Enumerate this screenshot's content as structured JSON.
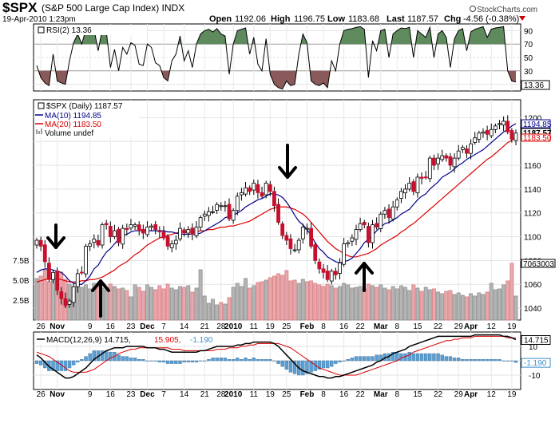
{
  "header": {
    "symbol": "$SPX",
    "name": "(S&P 500 Large Cap Index) INDX",
    "date": "19-Apr-2010 1:23pm",
    "open_label": "Open",
    "open": "1192.06",
    "high_label": "High",
    "high": "1196.75",
    "low_label": "Low",
    "low": "1183.68",
    "last_label": "Last",
    "last": "1187.57",
    "chg_label": "Chg",
    "chg": "-4.56 (-0.38%)",
    "copyright": "StockCharts.com"
  },
  "rsi": {
    "legend": "RSI(2) 13.36",
    "current_label": "13.36",
    "levels": [
      "90",
      "70",
      "50",
      "30",
      "10"
    ]
  },
  "price_legend": {
    "main": "$SPX (Daily) 1187.57",
    "ma10": "MA(10) 1194.85",
    "ma20": "MA(20) 1183.50",
    "volume": "Volume undef"
  },
  "macd": {
    "legend_main": "MACD(12,26,9) 14.715,",
    "legend_signal": "15.905,",
    "legend_hist": "-1.190",
    "label_main": "14.715",
    "label_hist": "-1.190",
    "ticks": [
      "10",
      "0",
      "-10"
    ]
  },
  "price_axis": {
    "ticks": [
      "1200",
      "1180",
      "1160",
      "1140",
      "1120",
      "1100",
      "1080",
      "1060",
      "1040"
    ],
    "labels_right": {
      "ma10": "1194.85",
      "last": "1187.57",
      "ma20": "1183.50"
    }
  },
  "volume_axis": {
    "ticks": [
      "7.5B",
      "5.0B",
      "2.5B"
    ],
    "label_right": "7063003"
  },
  "x_axis": {
    "labels": [
      {
        "i": 1,
        "t": "26",
        "bold": false
      },
      {
        "i": 5,
        "t": "Nov",
        "bold": true
      },
      {
        "i": 13,
        "t": "9",
        "bold": false
      },
      {
        "i": 18,
        "t": "16",
        "bold": false
      },
      {
        "i": 23,
        "t": "23",
        "bold": false
      },
      {
        "i": 27,
        "t": "Dec",
        "bold": true
      },
      {
        "i": 31,
        "t": "7",
        "bold": false
      },
      {
        "i": 36,
        "t": "14",
        "bold": false
      },
      {
        "i": 41,
        "t": "21",
        "bold": false
      },
      {
        "i": 45,
        "t": "28",
        "bold": false
      },
      {
        "i": 48,
        "t": "2010",
        "bold": true
      },
      {
        "i": 53,
        "t": "11",
        "bold": false
      },
      {
        "i": 57,
        "t": "19",
        "bold": false
      },
      {
        "i": 61,
        "t": "25",
        "bold": false
      },
      {
        "i": 66,
        "t": "Feb",
        "bold": true
      },
      {
        "i": 70,
        "t": "8",
        "bold": false
      },
      {
        "i": 75,
        "t": "16",
        "bold": false
      },
      {
        "i": 79,
        "t": "22",
        "bold": false
      },
      {
        "i": 84,
        "t": "Mar",
        "bold": true
      },
      {
        "i": 88,
        "t": "8",
        "bold": false
      },
      {
        "i": 93,
        "t": "15",
        "bold": false
      },
      {
        "i": 98,
        "t": "22",
        "bold": false
      },
      {
        "i": 103,
        "t": "29",
        "bold": false
      },
      {
        "i": 106,
        "t": "Apr",
        "bold": true
      },
      {
        "i": 111,
        "t": "12",
        "bold": false
      },
      {
        "i": 116,
        "t": "19",
        "bold": false
      }
    ]
  },
  "colors": {
    "up": "#ffffff",
    "down": "#c8102e",
    "ma10": "#00008b",
    "ma20": "#dd0000",
    "vol_up": "#b5b5b5",
    "vol_down": "#e8a8b0",
    "rsi_over": "#5e8a5e",
    "rsi_under": "#8a5a5a",
    "macd_hist": "#5a9fd4",
    "arrows": "#000000"
  },
  "chart_data": {
    "type": "candlestick",
    "title": "$SPX (S&P 500 Large Cap Index) INDX",
    "price_range": [
      1030,
      1215
    ],
    "rsi_range": [
      0,
      100
    ],
    "volume_range": [
      0,
      10
    ],
    "macd_range": [
      -20,
      20
    ],
    "closes": [
      1097,
      1092,
      1079,
      1064,
      1070,
      1055,
      1048,
      1042,
      1046,
      1058,
      1069,
      1070,
      1092,
      1094,
      1098,
      1093,
      1110,
      1110,
      1100,
      1105,
      1095,
      1107,
      1106,
      1110,
      1110,
      1105,
      1103,
      1108,
      1109,
      1106,
      1104,
      1099,
      1092,
      1094,
      1097,
      1107,
      1103,
      1106,
      1102,
      1108,
      1116,
      1119,
      1121,
      1121,
      1127,
      1126,
      1126,
      1115,
      1122,
      1134,
      1137,
      1141,
      1138,
      1145,
      1137,
      1134,
      1145,
      1138,
      1126,
      1112,
      1101,
      1097,
      1090,
      1089,
      1097,
      1108,
      1107,
      1092,
      1080,
      1073,
      1070,
      1064,
      1071,
      1068,
      1078,
      1094,
      1095,
      1099,
      1106,
      1111,
      1110,
      1095,
      1110,
      1108,
      1119,
      1122,
      1116,
      1125,
      1131,
      1138,
      1140,
      1145,
      1138,
      1150,
      1149,
      1150,
      1166,
      1160,
      1166,
      1168,
      1166,
      1160,
      1166,
      1172,
      1175,
      1170,
      1178,
      1183,
      1187,
      1188,
      1186,
      1190,
      1193,
      1195,
      1197,
      1188,
      1182,
      1187
    ],
    "ma10": [
      1070,
      1072,
      1073,
      1073,
      1072,
      1071,
      1070,
      1067,
      1063,
      1061,
      1060,
      1060,
      1063,
      1067,
      1073,
      1076,
      1082,
      1087,
      1090,
      1094,
      1098,
      1101,
      1102,
      1104,
      1105,
      1105,
      1105,
      1105,
      1105,
      1105,
      1105,
      1105,
      1104,
      1104,
      1103,
      1102,
      1102,
      1102,
      1102,
      1102,
      1103,
      1105,
      1107,
      1109,
      1111,
      1113,
      1116,
      1117,
      1118,
      1120,
      1122,
      1125,
      1127,
      1129,
      1131,
      1132,
      1134,
      1136,
      1136,
      1135,
      1133,
      1129,
      1124,
      1118,
      1113,
      1110,
      1106,
      1101,
      1095,
      1090,
      1087,
      1083,
      1081,
      1079,
      1078,
      1079,
      1080,
      1082,
      1086,
      1090,
      1095,
      1098,
      1101,
      1105,
      1108,
      1111,
      1112,
      1114,
      1116,
      1119,
      1121,
      1123,
      1127,
      1131,
      1134,
      1136,
      1140,
      1143,
      1146,
      1150,
      1152,
      1154,
      1157,
      1160,
      1162,
      1165,
      1167,
      1169,
      1171,
      1173,
      1176,
      1179,
      1182,
      1185,
      1188,
      1190,
      1193,
      1195
    ],
    "ma20": [
      1062,
      1063,
      1064,
      1065,
      1065,
      1065,
      1064,
      1063,
      1062,
      1062,
      1062,
      1063,
      1063,
      1064,
      1064,
      1065,
      1066,
      1068,
      1070,
      1072,
      1075,
      1077,
      1079,
      1082,
      1085,
      1087,
      1090,
      1093,
      1095,
      1097,
      1099,
      1100,
      1101,
      1102,
      1103,
      1104,
      1104,
      1104,
      1104,
      1104,
      1105,
      1105,
      1106,
      1106,
      1107,
      1108,
      1108,
      1109,
      1109,
      1110,
      1111,
      1112,
      1113,
      1115,
      1117,
      1119,
      1121,
      1123,
      1124,
      1125,
      1125,
      1125,
      1124,
      1123,
      1121,
      1119,
      1116,
      1112,
      1108,
      1104,
      1100,
      1096,
      1093,
      1090,
      1088,
      1086,
      1084,
      1083,
      1083,
      1084,
      1085,
      1086,
      1088,
      1090,
      1093,
      1095,
      1097,
      1099,
      1101,
      1104,
      1106,
      1109,
      1111,
      1114,
      1117,
      1120,
      1123,
      1126,
      1129,
      1132,
      1135,
      1138,
      1141,
      1144,
      1147,
      1150,
      1153,
      1156,
      1159,
      1162,
      1165,
      1167,
      1170,
      1173,
      1176,
      1179,
      1181,
      1183.5
    ],
    "rsi": [
      38,
      20,
      12,
      8,
      55,
      15,
      12,
      10,
      45,
      72,
      85,
      70,
      92,
      90,
      92,
      60,
      92,
      88,
      35,
      62,
      30,
      65,
      55,
      72,
      68,
      40,
      38,
      70,
      65,
      42,
      38,
      20,
      15,
      45,
      55,
      82,
      45,
      60,
      35,
      70,
      85,
      90,
      92,
      88,
      93,
      85,
      82,
      25,
      70,
      90,
      92,
      94,
      55,
      80,
      40,
      30,
      78,
      25,
      10,
      5,
      3,
      15,
      8,
      10,
      55,
      85,
      72,
      15,
      10,
      8,
      12,
      5,
      45,
      30,
      70,
      90,
      92,
      93,
      95,
      96,
      92,
      20,
      75,
      60,
      90,
      92,
      50,
      85,
      90,
      94,
      93,
      95,
      50,
      90,
      85,
      80,
      95,
      50,
      85,
      90,
      80,
      35,
      78,
      90,
      93,
      60,
      88,
      92,
      94,
      96,
      80,
      92,
      94,
      95,
      96,
      30,
      15,
      13.36
    ],
    "volume": [
      5.2,
      5.5,
      6.3,
      4.8,
      5.6,
      4.9,
      6.0,
      5.1,
      4.5,
      4.2,
      4.9,
      4.1,
      4.4,
      3.9,
      4.6,
      4.3,
      4.0,
      3.8,
      4.5,
      4.2,
      3.9,
      4.0,
      3.7,
      2.9,
      4.4,
      4.1,
      3.6,
      4.4,
      4.1,
      3.8,
      4.3,
      3.9,
      4.5,
      4.0,
      3.8,
      4.2,
      4.1,
      4.3,
      3.5,
      4.0,
      6.3,
      3.0,
      2.1,
      2.6,
      1.9,
      2.2,
      2.0,
      2.8,
      4.1,
      4.6,
      4.2,
      5.2,
      4.0,
      4.3,
      4.7,
      4.8,
      5.0,
      5.3,
      5.5,
      5.8,
      5.6,
      6.2,
      4.9,
      5.0,
      4.6,
      5.1,
      4.8,
      4.9,
      4.6,
      4.4,
      4.2,
      4.5,
      4.3,
      4.0,
      4.2,
      4.6,
      4.4,
      4.0,
      4.1,
      4.2,
      3.9,
      4.5,
      4.3,
      4.1,
      4.4,
      4.0,
      3.8,
      4.2,
      3.9,
      4.3,
      4.1,
      3.7,
      4.4,
      4.0,
      3.6,
      4.1,
      3.8,
      3.9,
      3.5,
      3.3,
      3.6,
      3.7,
      3.2,
      3.4,
      3.1,
      2.9,
      3.3,
      3.0,
      3.4,
      3.2,
      3.5,
      4.6,
      3.8,
      3.9,
      4.4,
      4.9,
      7.1,
      3.0
    ],
    "macd": [
      4,
      2,
      -1,
      -4,
      -6,
      -8,
      -10,
      -12,
      -12,
      -11,
      -9,
      -7,
      -5,
      -2,
      1,
      3,
      5,
      7,
      8,
      9,
      9,
      9,
      10,
      10,
      10,
      10,
      10,
      9,
      9,
      9,
      8,
      8,
      7,
      6,
      6,
      6,
      6,
      6,
      6,
      6,
      7,
      7,
      8,
      9,
      10,
      10,
      10,
      10,
      10,
      11,
      11,
      12,
      12,
      13,
      13,
      13,
      13,
      13,
      12,
      10,
      7,
      4,
      1,
      -2,
      -5,
      -7,
      -8,
      -9,
      -10,
      -11,
      -11,
      -12,
      -12,
      -11,
      -11,
      -10,
      -9,
      -8,
      -7,
      -6,
      -5,
      -4,
      -3,
      -1,
      0,
      2,
      3,
      5,
      6,
      7,
      8,
      10,
      11,
      12,
      13,
      14,
      15,
      16,
      17,
      17,
      17,
      17,
      17,
      17,
      17,
      17,
      17,
      18,
      18,
      18,
      18,
      18,
      18,
      18,
      17,
      17,
      16,
      14.715
    ],
    "signal": [
      6,
      5,
      4,
      3,
      1,
      -1,
      -3,
      -5,
      -7,
      -8,
      -8,
      -8,
      -8,
      -7,
      -6,
      -4,
      -2,
      0,
      2,
      3,
      5,
      6,
      7,
      8,
      8,
      9,
      9,
      9,
      9,
      9,
      9,
      9,
      9,
      8,
      8,
      8,
      7,
      7,
      7,
      7,
      7,
      7,
      7,
      7,
      8,
      8,
      8,
      9,
      9,
      9,
      10,
      10,
      11,
      11,
      12,
      12,
      12,
      12,
      12,
      12,
      11,
      10,
      9,
      7,
      5,
      3,
      1,
      -1,
      -3,
      -5,
      -6,
      -7,
      -8,
      -9,
      -10,
      -10,
      -10,
      -10,
      -10,
      -9,
      -8,
      -7,
      -6,
      -5,
      -4,
      -3,
      -2,
      -1,
      0,
      2,
      3,
      4,
      6,
      7,
      8,
      9,
      10,
      11,
      12,
      13,
      14,
      14,
      15,
      15,
      16,
      16,
      16,
      17,
      17,
      17,
      17,
      17,
      17,
      17,
      17,
      16,
      16,
      15.905
    ],
    "hist": [
      -2,
      -3,
      -5,
      -7,
      -7,
      -7,
      -7,
      -7,
      -5,
      -3,
      -1,
      1,
      3,
      5,
      7,
      7,
      7,
      7,
      6,
      6,
      4,
      3,
      3,
      2,
      2,
      1,
      1,
      0,
      0,
      0,
      -1,
      -1,
      -2,
      -2,
      -2,
      -2,
      -1,
      -1,
      -1,
      -1,
      0,
      0,
      1,
      2,
      2,
      2,
      2,
      1,
      1,
      2,
      1,
      2,
      1,
      2,
      1,
      1,
      1,
      1,
      0,
      -2,
      -4,
      -6,
      -8,
      -9,
      -10,
      -10,
      -9,
      -8,
      -7,
      -6,
      -5,
      -5,
      -4,
      -2,
      -1,
      0,
      1,
      2,
      3,
      3,
      3,
      3,
      3,
      4,
      4,
      5,
      5,
      6,
      6,
      5,
      5,
      6,
      5,
      5,
      5,
      5,
      5,
      5,
      5,
      4,
      3,
      3,
      2,
      2,
      1,
      1,
      1,
      1,
      1,
      1,
      1,
      1,
      1,
      1,
      0,
      0,
      0,
      -1.19
    ]
  }
}
